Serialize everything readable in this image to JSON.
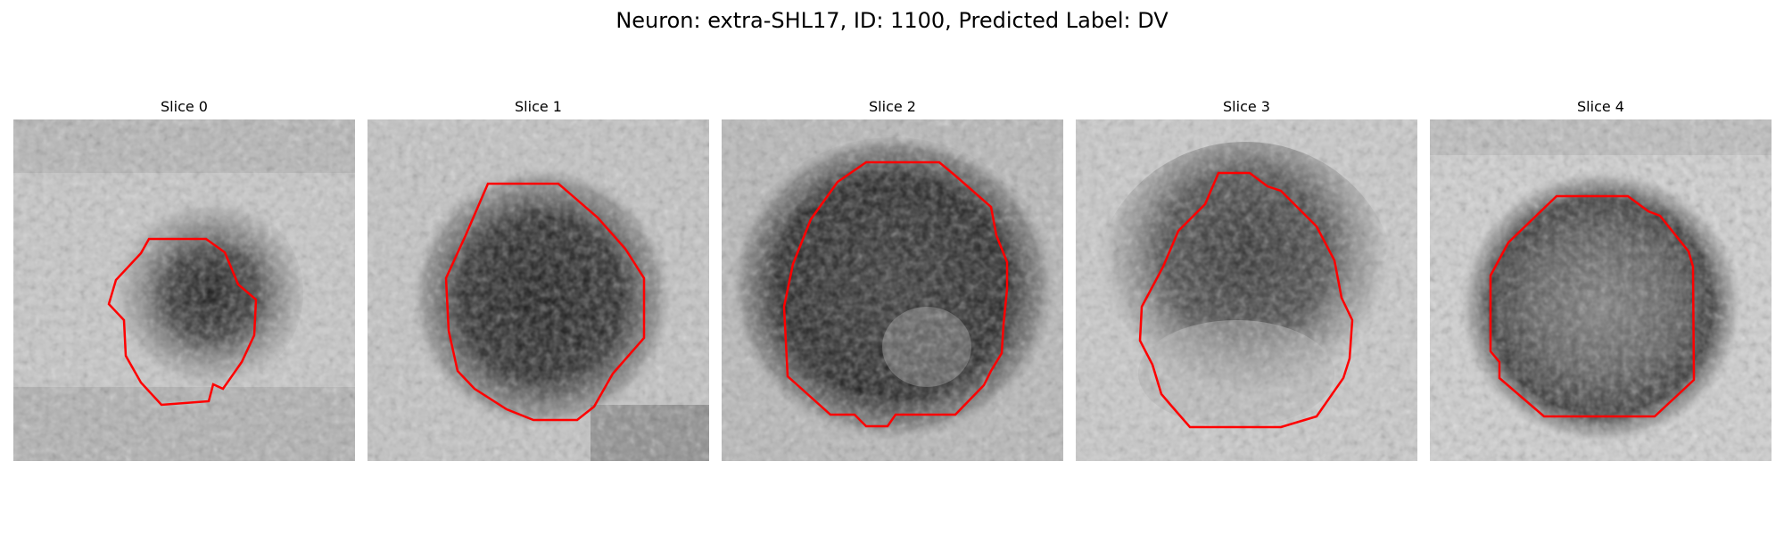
{
  "figure": {
    "title": "Neuron: extra-SHL17, ID: 1100, Predicted Label: DV",
    "colors": {
      "outline": "#ff0000"
    },
    "slices": [
      {
        "title": "Slice 0"
      },
      {
        "title": "Slice 1"
      },
      {
        "title": "Slice 2"
      },
      {
        "title": "Slice 3"
      },
      {
        "title": "Slice 4"
      }
    ]
  }
}
